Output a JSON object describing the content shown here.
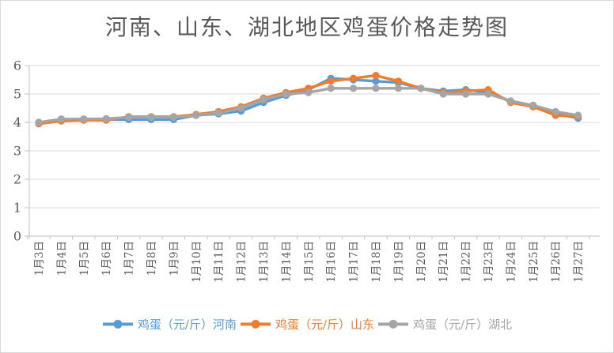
{
  "title": "河南、山东、湖北地区鸡蛋价格走势图",
  "colors": {
    "title_text": "#595959",
    "axis_text": "#595959",
    "gridline": "#D9D9D9",
    "axis_line": "#BFBFBF",
    "series_henan": "#5B9BD5",
    "series_shandong": "#ED7D31",
    "series_hubei": "#A5A5A5",
    "frame_border": "#D9D9D9",
    "background": "#FFFFFF"
  },
  "chart_data": {
    "type": "line",
    "title": "河南、山东、湖北地区鸡蛋价格走势图",
    "xlabel": "",
    "ylabel": "",
    "ylim": [
      0,
      6
    ],
    "yticks": [
      0,
      1,
      2,
      3,
      4,
      5,
      6
    ],
    "grid": true,
    "legend_position": "bottom",
    "categories": [
      "1月3日",
      "1月4日",
      "1月5日",
      "1月6日",
      "1月7日",
      "1月8日",
      "1月9日",
      "1月10日",
      "1月11日",
      "1月12日",
      "1月13日",
      "1月14日",
      "1月15日",
      "1月16日",
      "1月17日",
      "1月18日",
      "1月19日",
      "1月20日",
      "1月21日",
      "1月22日",
      "1月23日",
      "1月24日",
      "1月25日",
      "1月26日",
      "1月27日"
    ],
    "series": [
      {
        "name": "鸡蛋（元/斤）河南",
        "key": "henan",
        "color": "#5B9BD5",
        "values": [
          4.0,
          4.1,
          4.1,
          4.1,
          4.1,
          4.1,
          4.1,
          4.25,
          4.3,
          4.4,
          4.7,
          4.95,
          5.15,
          5.55,
          5.5,
          5.45,
          5.4,
          5.2,
          5.1,
          5.15,
          5.05,
          4.75,
          4.6,
          4.3,
          4.15
        ]
      },
      {
        "name": "鸡蛋（元/斤）山东",
        "key": "shandong",
        "color": "#ED7D31",
        "values": [
          3.95,
          4.05,
          4.08,
          4.08,
          4.2,
          4.2,
          4.2,
          4.28,
          4.38,
          4.55,
          4.85,
          5.05,
          5.2,
          5.45,
          5.55,
          5.65,
          5.45,
          5.2,
          5.05,
          5.1,
          5.15,
          4.7,
          4.55,
          4.25,
          4.2
        ]
      },
      {
        "name": "鸡蛋（元/斤）湖北",
        "key": "hubei",
        "color": "#A5A5A5",
        "values": [
          4.0,
          4.12,
          4.12,
          4.13,
          4.18,
          4.18,
          4.18,
          4.25,
          4.33,
          4.5,
          4.8,
          5.0,
          5.05,
          5.2,
          5.2,
          5.2,
          5.2,
          5.2,
          5.0,
          5.0,
          5.0,
          4.75,
          4.6,
          4.38,
          4.25
        ]
      }
    ]
  }
}
